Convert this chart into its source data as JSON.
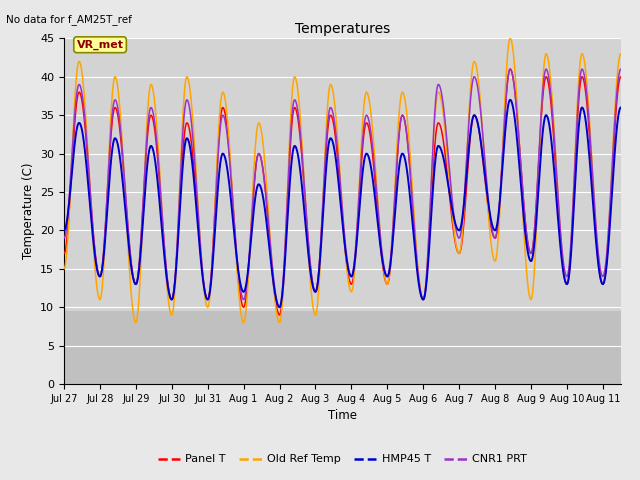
{
  "title": "Temperatures",
  "xlabel": "Time",
  "ylabel": "Temperature (C)",
  "note": "No data for f_AM25T_ref",
  "vr_met_label": "VR_met",
  "ylim": [
    0,
    45
  ],
  "yticks": [
    0,
    5,
    10,
    15,
    20,
    25,
    30,
    35,
    40,
    45
  ],
  "series": [
    "Panel T",
    "Old Ref Temp",
    "HMP45 T",
    "CNR1 PRT"
  ],
  "colors": [
    "#ff0000",
    "#ffa500",
    "#0000cd",
    "#9933cc"
  ],
  "fig_bg": "#e8e8e8",
  "plot_bg": "#d3d3d3",
  "lower_band_bg": "#c0c0c0",
  "grid_color": "#ffffff",
  "num_cycles": 15,
  "x_tick_labels": [
    "Jul 27",
    "Jul 28",
    "Jul 29",
    "Jul 30",
    "Jul 31",
    "Aug 1",
    "Aug 2",
    "Aug 3",
    "Aug 4",
    "Aug 5",
    "Aug 6",
    "Aug 7",
    "Aug 8",
    "Aug 9",
    "Aug 10",
    "Aug 11"
  ],
  "panel_T_peaks": [
    38,
    36,
    35,
    34,
    36,
    30,
    36,
    35,
    34,
    35,
    34,
    35,
    41,
    40,
    40
  ],
  "panel_T_troughs": [
    17,
    14,
    13,
    11,
    11,
    10,
    9,
    12,
    13,
    13,
    11,
    17,
    19,
    17,
    13
  ],
  "old_ref_peaks": [
    42,
    40,
    39,
    40,
    38,
    34,
    40,
    39,
    38,
    38,
    38,
    42,
    45,
    43,
    43
  ],
  "old_ref_troughs": [
    15,
    11,
    8,
    9,
    10,
    8,
    8,
    9,
    12,
    13,
    11,
    17,
    16,
    11,
    13
  ],
  "hmp45_peaks": [
    34,
    32,
    31,
    32,
    30,
    26,
    31,
    32,
    30,
    30,
    31,
    35,
    37,
    35,
    36
  ],
  "hmp45_troughs": [
    20,
    14,
    13,
    11,
    11,
    12,
    10,
    12,
    14,
    14,
    11,
    20,
    20,
    16,
    13
  ],
  "cnr1_peaks": [
    39,
    37,
    36,
    37,
    35,
    30,
    37,
    36,
    35,
    35,
    39,
    40,
    41,
    41,
    41
  ],
  "cnr1_troughs": [
    19,
    14,
    13,
    11,
    11,
    11,
    10,
    12,
    14,
    14,
    11,
    19,
    19,
    17,
    14
  ]
}
